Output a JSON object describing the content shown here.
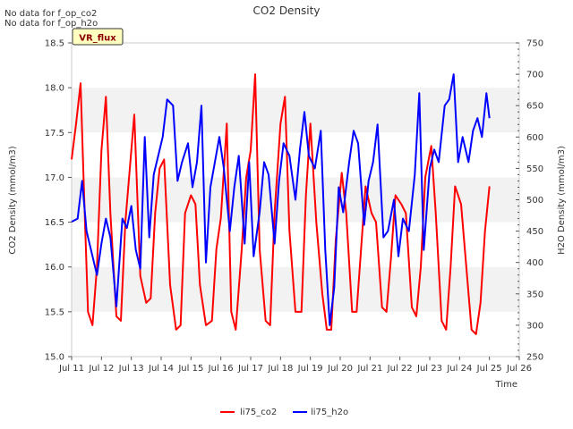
{
  "notes": [
    "No data for f_op_co2",
    "No data for f_op_h2o"
  ],
  "site_badge": "VR_flux",
  "chart_data": {
    "type": "line",
    "title": "CO2 Density",
    "xlabel": "Time",
    "ylabel_left": "CO2 Density (mmol/m3)",
    "ylabel_right": "H2O Density (mmol/m3)",
    "x_ticks": [
      "Jul 11",
      "Jul 12",
      "Jul 13",
      "Jul 14",
      "Jul 15",
      "Jul 16",
      "Jul 17",
      "Jul 18",
      "Jul 19",
      "Jul 20",
      "Jul 21",
      "Jul 22",
      "Jul 23",
      "Jul 24",
      "Jul 25",
      "Jul 26"
    ],
    "xlim": [
      11,
      26
    ],
    "ylim_left": [
      15.0,
      18.5
    ],
    "yticks_left": [
      "15.0",
      "15.5",
      "16.0",
      "16.5",
      "17.0",
      "17.5",
      "18.0",
      "18.5"
    ],
    "ylim_right": [
      250,
      750
    ],
    "yticks_right": [
      "250",
      "300",
      "350",
      "400",
      "450",
      "500",
      "550",
      "600",
      "650",
      "700",
      "750"
    ],
    "grid": "horizontal bands",
    "legend_position": "bottom-center",
    "series": [
      {
        "name": "li75_co2",
        "axis": "left",
        "color": "#ff0000",
        "x": [
          11.0,
          11.15,
          11.3,
          11.4,
          11.55,
          11.7,
          11.85,
          12.0,
          12.15,
          12.3,
          12.5,
          12.65,
          12.8,
          12.95,
          13.1,
          13.3,
          13.5,
          13.65,
          13.8,
          13.95,
          14.1,
          14.3,
          14.5,
          14.65,
          14.8,
          15.0,
          15.15,
          15.3,
          15.5,
          15.7,
          15.85,
          16.0,
          16.2,
          16.35,
          16.5,
          16.7,
          16.85,
          17.0,
          17.15,
          17.3,
          17.5,
          17.65,
          17.8,
          18.0,
          18.15,
          18.3,
          18.5,
          18.7,
          18.85,
          19.0,
          19.2,
          19.4,
          19.55,
          19.7,
          19.85,
          20.05,
          20.2,
          20.4,
          20.55,
          20.7,
          20.85,
          21.05,
          21.2,
          21.4,
          21.55,
          21.7,
          21.85,
          22.05,
          22.2,
          22.4,
          22.55,
          22.7,
          22.85,
          23.05,
          23.2,
          23.4,
          23.55,
          23.7,
          23.85,
          24.05,
          24.2,
          24.4,
          24.55,
          24.7,
          24.85,
          25.0
        ],
        "values": [
          17.2,
          17.6,
          18.05,
          17.0,
          15.5,
          15.35,
          16.0,
          17.3,
          17.9,
          16.6,
          15.45,
          15.4,
          16.5,
          17.1,
          17.7,
          15.9,
          15.6,
          15.65,
          16.6,
          17.1,
          17.2,
          15.8,
          15.3,
          15.35,
          16.6,
          16.8,
          16.7,
          15.8,
          15.35,
          15.4,
          16.2,
          16.55,
          17.6,
          15.5,
          15.3,
          16.2,
          17.0,
          17.3,
          18.15,
          16.2,
          15.4,
          15.35,
          16.6,
          17.6,
          17.9,
          16.4,
          15.5,
          15.5,
          16.8,
          17.6,
          16.5,
          15.7,
          15.3,
          15.3,
          16.3,
          17.05,
          16.6,
          15.5,
          15.5,
          16.2,
          16.9,
          16.6,
          16.5,
          15.55,
          15.5,
          16.1,
          16.8,
          16.7,
          16.6,
          15.55,
          15.45,
          16.0,
          17.0,
          17.35,
          16.6,
          15.4,
          15.3,
          16.0,
          16.9,
          16.7,
          16.1,
          15.3,
          15.25,
          15.6,
          16.4,
          16.9
        ]
      },
      {
        "name": "li75_h2o",
        "axis": "right",
        "color": "#0000ff",
        "x": [
          11.0,
          11.2,
          11.35,
          11.5,
          11.7,
          11.85,
          12.0,
          12.15,
          12.3,
          12.5,
          12.7,
          12.85,
          13.0,
          13.15,
          13.3,
          13.45,
          13.6,
          13.75,
          13.9,
          14.05,
          14.2,
          14.4,
          14.55,
          14.7,
          14.9,
          15.05,
          15.2,
          15.35,
          15.5,
          15.65,
          15.8,
          15.95,
          16.1,
          16.3,
          16.45,
          16.6,
          16.8,
          16.95,
          17.1,
          17.3,
          17.45,
          17.6,
          17.8,
          17.95,
          18.1,
          18.3,
          18.5,
          18.65,
          18.8,
          18.95,
          19.15,
          19.35,
          19.5,
          19.65,
          19.8,
          19.95,
          20.1,
          20.3,
          20.45,
          20.6,
          20.8,
          20.95,
          21.1,
          21.25,
          21.45,
          21.6,
          21.8,
          21.95,
          22.1,
          22.3,
          22.5,
          22.65,
          22.8,
          23.0,
          23.15,
          23.3,
          23.5,
          23.65,
          23.8,
          23.95,
          24.1,
          24.3,
          24.45,
          24.6,
          24.75,
          24.9,
          25.0
        ],
        "values": [
          465,
          470,
          530,
          450,
          410,
          380,
          430,
          470,
          440,
          330,
          470,
          455,
          490,
          420,
          390,
          600,
          440,
          540,
          570,
          600,
          660,
          650,
          530,
          560,
          590,
          520,
          560,
          650,
          400,
          520,
          560,
          600,
          550,
          450,
          520,
          570,
          430,
          560,
          410,
          480,
          560,
          540,
          430,
          530,
          590,
          570,
          500,
          580,
          640,
          570,
          550,
          610,
          420,
          300,
          360,
          520,
          480,
          560,
          610,
          590,
          460,
          530,
          560,
          620,
          440,
          450,
          500,
          410,
          470,
          450,
          540,
          670,
          420,
          550,
          580,
          560,
          650,
          660,
          700,
          560,
          600,
          560,
          610,
          630,
          600,
          670,
          630
        ]
      }
    ]
  }
}
